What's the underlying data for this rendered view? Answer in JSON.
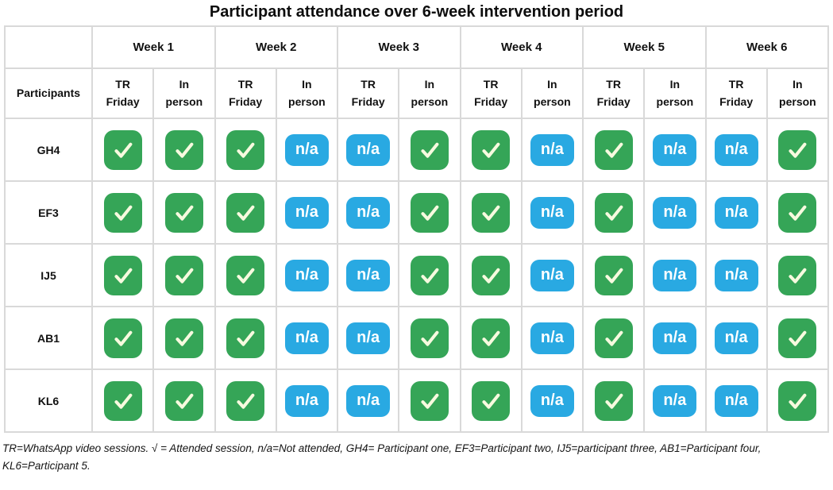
{
  "title": "Participant attendance over 6-week intervention period",
  "table": {
    "corner_label": "",
    "participants_header": "Participants",
    "weeks": [
      "Week 1",
      "Week 2",
      "Week 3",
      "Week 4",
      "Week 5",
      "Week 6"
    ],
    "session_headers": [
      "TR\nFriday",
      "In\nperson"
    ],
    "rows": [
      {
        "participant": "GH4",
        "attendance": [
          "attended",
          "attended",
          "attended",
          "na",
          "na",
          "attended",
          "attended",
          "na",
          "attended",
          "na",
          "na",
          "attended"
        ]
      },
      {
        "participant": "EF3",
        "attendance": [
          "attended",
          "attended",
          "attended",
          "na",
          "na",
          "attended",
          "attended",
          "na",
          "attended",
          "na",
          "na",
          "attended"
        ]
      },
      {
        "participant": "IJ5",
        "attendance": [
          "attended",
          "attended",
          "attended",
          "na",
          "na",
          "attended",
          "attended",
          "na",
          "attended",
          "na",
          "na",
          "attended"
        ]
      },
      {
        "participant": "AB1",
        "attendance": [
          "attended",
          "attended",
          "attended",
          "na",
          "na",
          "attended",
          "attended",
          "na",
          "attended",
          "na",
          "na",
          "attended"
        ]
      },
      {
        "participant": "KL6",
        "attendance": [
          "attended",
          "attended",
          "attended",
          "na",
          "na",
          "attended",
          "attended",
          "na",
          "attended",
          "na",
          "na",
          "attended"
        ]
      }
    ]
  },
  "legend": {
    "attended_symbol": "✓",
    "na_label": "n/a"
  },
  "colors": {
    "attended_green": "#35a557",
    "na_blue": "#29a9e2",
    "check_stroke": "#f7fadf",
    "border_gray": "#d9d9d9"
  },
  "footnote_lines": [
    "TR=WhatsApp video sessions. √ = Attended session, n/a=Not attended, GH4= Participant one, EF3=Participant two, IJ5=participant three, AB1=Participant four,",
    "KL6=Participant 5."
  ]
}
